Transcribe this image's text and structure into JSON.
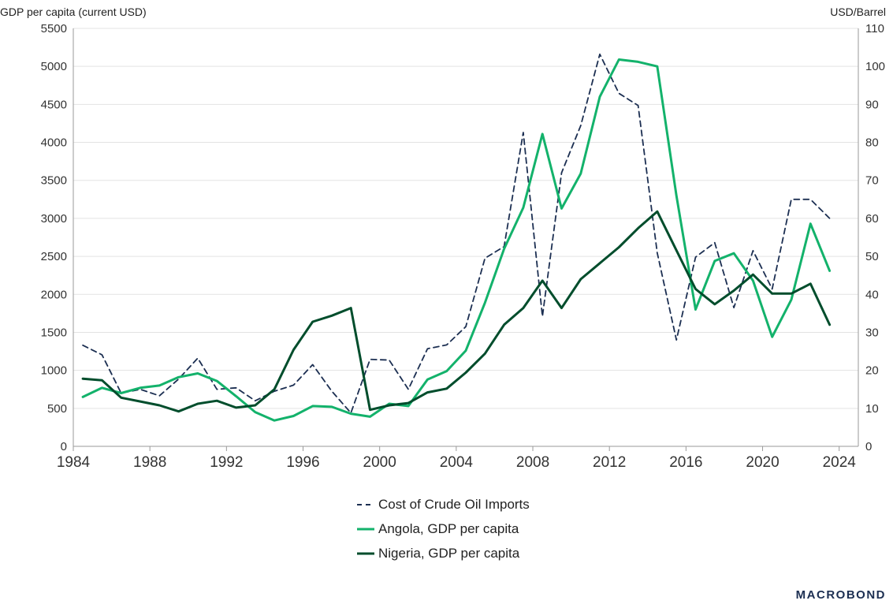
{
  "chart_data": {
    "type": "line",
    "ylabel_left": "GDP per capita (current USD)",
    "ylabel_right": "USD/Barrel",
    "xlim": [
      1984,
      2025
    ],
    "ylim_left": [
      0,
      5500
    ],
    "ylim_right": [
      0,
      110
    ],
    "x_ticks": [
      "1984",
      "1988",
      "1992",
      "1996",
      "2000",
      "2004",
      "2008",
      "2012",
      "2016",
      "2020",
      "2024"
    ],
    "y_ticks_left": [
      "0",
      "500",
      "1000",
      "1500",
      "2000",
      "2500",
      "3000",
      "3500",
      "4000",
      "4500",
      "5000",
      "5500"
    ],
    "y_ticks_right": [
      "0",
      "10",
      "20",
      "30",
      "40",
      "50",
      "60",
      "70",
      "80",
      "90",
      "100",
      "110"
    ],
    "grid": true,
    "legend_position": "bottom",
    "series": [
      {
        "name": "Cost of Crude Oil Imports",
        "axis": "right",
        "color": "#1c2f52",
        "dashed": true,
        "x": [
          1984.5,
          1985.5,
          1986.5,
          1987.5,
          1988.5,
          1989.5,
          1990.5,
          1991.5,
          1992.5,
          1993.5,
          1994.5,
          1995.5,
          1996.5,
          1997.5,
          1998.5,
          1999.5,
          2000.5,
          2001.5,
          2002.5,
          2003.5,
          2004.5,
          2005.5,
          2006.5,
          2007.5,
          2008.5,
          2009.5,
          2010.5,
          2011.5,
          2012.5,
          2013.5,
          2014.5,
          2015.5,
          2016.5,
          2017.5,
          2018.5,
          2019.5,
          2020.5,
          2021.5,
          2022.5,
          2023.5
        ],
        "values": [
          26.6,
          24.1,
          14.0,
          15.0,
          13.3,
          17.7,
          23.2,
          15.0,
          15.4,
          12.0,
          14.5,
          16.1,
          21.5,
          14.5,
          8.8,
          22.9,
          22.7,
          15.0,
          25.7,
          26.7,
          31.5,
          49.5,
          52.6,
          82.6,
          34.2,
          72.0,
          84.4,
          103.2,
          92.9,
          89.7,
          50.9,
          28.0,
          49.8,
          53.6,
          36.5,
          51.5,
          41.4,
          65.0,
          65.0,
          60.0
        ]
      },
      {
        "name": "Angola, GDP per capita",
        "axis": "left",
        "color": "#13b26b",
        "dashed": false,
        "x": [
          1984.5,
          1985.5,
          1986.5,
          1987.5,
          1988.5,
          1989.5,
          1990.5,
          1991.5,
          1992.5,
          1993.5,
          1994.5,
          1995.5,
          1996.5,
          1997.5,
          1998.5,
          1999.5,
          2000.5,
          2001.5,
          2002.5,
          2003.5,
          2004.5,
          2005.5,
          2006.5,
          2007.5,
          2008.5,
          2009.5,
          2010.5,
          2011.5,
          2012.5,
          2013.5,
          2014.5,
          2015.5,
          2016.5,
          2017.5,
          2018.5,
          2019.5,
          2020.5,
          2021.5,
          2022.5,
          2023.5
        ],
        "values": [
          650,
          770,
          700,
          770,
          800,
          910,
          960,
          860,
          660,
          450,
          340,
          400,
          530,
          520,
          430,
          390,
          560,
          530,
          880,
          990,
          1260,
          1890,
          2600,
          3140,
          4110,
          3130,
          3590,
          4600,
          5090,
          5060,
          5000,
          3300,
          1800,
          2440,
          2540,
          2180,
          1440,
          1930,
          2930,
          2310
        ]
      },
      {
        "name": "Nigeria, GDP per capita",
        "axis": "left",
        "color": "#004d2c",
        "dashed": false,
        "x": [
          1984.5,
          1985.5,
          1986.5,
          1987.5,
          1988.5,
          1989.5,
          1990.5,
          1991.5,
          1992.5,
          1993.5,
          1994.5,
          1995.5,
          1996.5,
          1997.5,
          1998.5,
          1999.5,
          2000.5,
          2001.5,
          2002.5,
          2003.5,
          2004.5,
          2005.5,
          2006.5,
          2007.5,
          2008.5,
          2009.5,
          2010.5,
          2011.5,
          2012.5,
          2013.5,
          2014.5,
          2015.5,
          2016.5,
          2017.5,
          2018.5,
          2019.5,
          2020.5,
          2021.5,
          2022.5,
          2023.5
        ],
        "values": [
          890,
          870,
          640,
          590,
          540,
          460,
          560,
          600,
          510,
          540,
          750,
          1270,
          1640,
          1720,
          1820,
          480,
          540,
          570,
          710,
          760,
          970,
          1220,
          1600,
          1820,
          2180,
          1820,
          2200,
          2410,
          2620,
          2870,
          3090,
          2580,
          2070,
          1870,
          2050,
          2260,
          2010,
          2010,
          2140,
          1600
        ]
      }
    ]
  },
  "legend": {
    "items": [
      "Cost of Crude Oil Imports",
      "Angola, GDP per capita",
      "Nigeria, GDP per capita"
    ]
  },
  "branding": {
    "logo": "MACROBOND"
  }
}
